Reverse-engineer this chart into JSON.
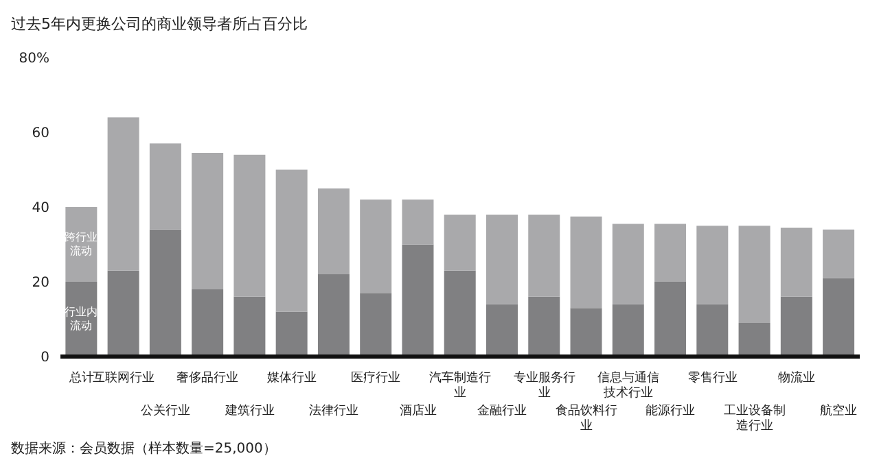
{
  "chart_data": {
    "type": "bar",
    "stacked": true,
    "title": "过去5年内更换公司的商业领导者所占百分比",
    "categories": [
      "总计",
      "互联网行业",
      "公关行业",
      "奢侈品行业",
      "建筑行业",
      "媒体行业",
      "法律行业",
      "医疗行业",
      "酒店业",
      "汽车制造行业",
      "金融行业",
      "专业服务行业",
      "食品饮料行业",
      "信息与通信技术行业",
      "能源行业",
      "零售行业",
      "工业设备制造行业",
      "物流业",
      "航空业"
    ],
    "series": [
      {
        "name": "行业内流动",
        "color": "#808082",
        "values": [
          20,
          23,
          34,
          18,
          16,
          12,
          22,
          17,
          30,
          23,
          14,
          16,
          13,
          14,
          20,
          14,
          9,
          16,
          21
        ]
      },
      {
        "name": "跨行业流动",
        "color": "#a9a9ab",
        "values": [
          20,
          41,
          23,
          36.5,
          38,
          38,
          23,
          25,
          12,
          15,
          24,
          22,
          24.5,
          21.5,
          15.5,
          21,
          26,
          18.5,
          13
        ]
      }
    ],
    "ylim": [
      0,
      80
    ],
    "yticks": [
      0,
      20,
      40,
      60,
      {
        "value": 80,
        "label": "80%"
      }
    ],
    "grid": false,
    "legend": false,
    "annotations": [
      "数据来源：会员数据（样本数量=25,000）"
    ]
  }
}
